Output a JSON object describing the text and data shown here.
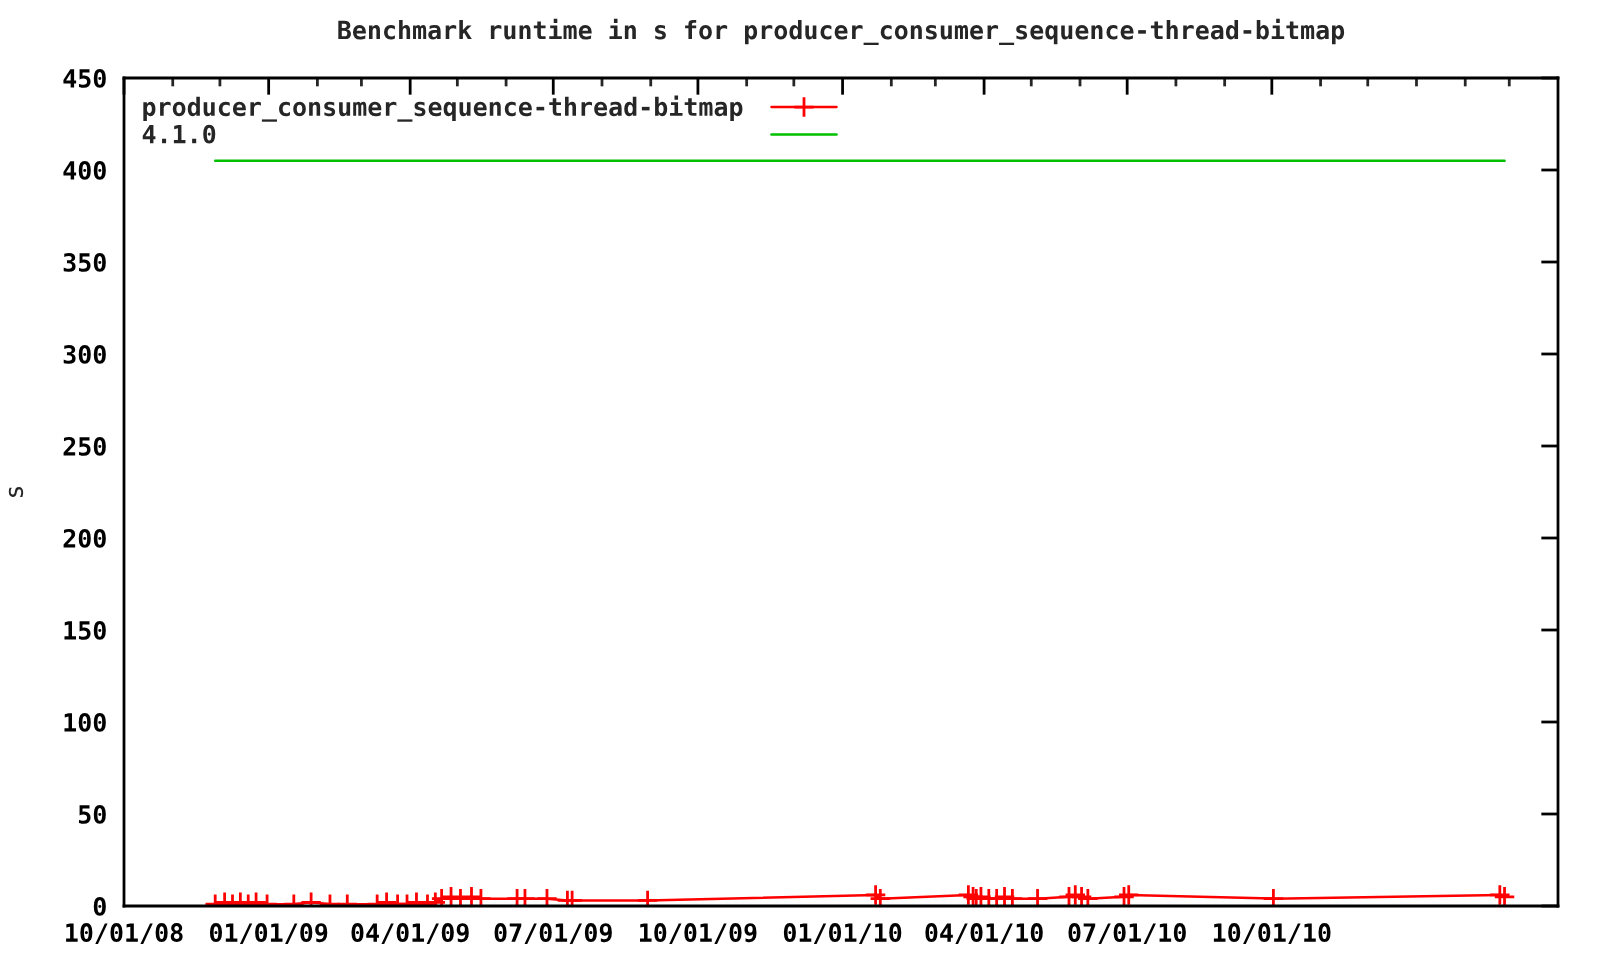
{
  "chart_data": {
    "type": "line",
    "title": "Benchmark runtime in s for producer_consumer_sequence-thread-bitmap",
    "ylabel": "s",
    "xlim": [
      "2008-10-01",
      "2011-04-01"
    ],
    "ylim": [
      0,
      450
    ],
    "yticks": [
      0,
      50,
      100,
      150,
      200,
      250,
      300,
      350,
      400,
      450
    ],
    "xticks": [
      {
        "value": "2008-10-01",
        "label": "10/01/08"
      },
      {
        "value": "2008-11-01",
        "label": null
      },
      {
        "value": "2008-12-01",
        "label": null
      },
      {
        "value": "2009-01-01",
        "label": "01/01/09"
      },
      {
        "value": "2009-02-01",
        "label": null
      },
      {
        "value": "2009-03-01",
        "label": null
      },
      {
        "value": "2009-04-01",
        "label": "04/01/09"
      },
      {
        "value": "2009-05-01",
        "label": null
      },
      {
        "value": "2009-06-01",
        "label": null
      },
      {
        "value": "2009-07-01",
        "label": "07/01/09"
      },
      {
        "value": "2009-08-01",
        "label": null
      },
      {
        "value": "2009-09-01",
        "label": null
      },
      {
        "value": "2009-10-01",
        "label": "10/01/09"
      },
      {
        "value": "2009-11-01",
        "label": null
      },
      {
        "value": "2009-12-01",
        "label": null
      },
      {
        "value": "2010-01-01",
        "label": "01/01/10"
      },
      {
        "value": "2010-02-01",
        "label": null
      },
      {
        "value": "2010-03-01",
        "label": null
      },
      {
        "value": "2010-04-01",
        "label": "04/01/10"
      },
      {
        "value": "2010-05-01",
        "label": null
      },
      {
        "value": "2010-06-01",
        "label": null
      },
      {
        "value": "2010-07-01",
        "label": "07/01/10"
      },
      {
        "value": "2010-08-01",
        "label": null
      },
      {
        "value": "2010-09-01",
        "label": null
      },
      {
        "value": "2010-10-01",
        "label": "10/01/10"
      },
      {
        "value": "2010-11-01",
        "label": null
      },
      {
        "value": "2010-12-01",
        "label": null
      },
      {
        "value": "2011-01-01",
        "label": null
      },
      {
        "value": "2011-02-01",
        "label": null
      },
      {
        "value": "2011-03-01",
        "label": null
      }
    ],
    "legend": "top left",
    "series": [
      {
        "name": "producer_consumer_sequence-thread-bitmap",
        "color": "#ff0000",
        "marker": "cross",
        "x": [
          "2008-11-28",
          "2008-12-04",
          "2008-12-09",
          "2008-12-14",
          "2008-12-19",
          "2008-12-24",
          "2008-12-31",
          "2009-01-17",
          "2009-01-28",
          "2009-02-09",
          "2009-02-20",
          "2009-03-11",
          "2009-03-17",
          "2009-03-24",
          "2009-03-30",
          "2009-04-05",
          "2009-04-12",
          "2009-04-17",
          "2009-04-21",
          "2009-04-27",
          "2009-05-03",
          "2009-05-10",
          "2009-05-16",
          "2009-06-08",
          "2009-06-13",
          "2009-06-27",
          "2009-07-10",
          "2009-07-13",
          "2009-08-30",
          "2010-01-22",
          "2010-01-25",
          "2010-03-22",
          "2010-03-25",
          "2010-03-27",
          "2010-03-30",
          "2010-04-04",
          "2010-04-09",
          "2010-04-14",
          "2010-04-19",
          "2010-05-05",
          "2010-05-25",
          "2010-05-29",
          "2010-06-02",
          "2010-06-06",
          "2010-06-29",
          "2010-07-02",
          "2010-10-02",
          "2011-02-23",
          "2011-02-26"
        ],
        "values": [
          1,
          2,
          1,
          2,
          1,
          2,
          1,
          1,
          2,
          1,
          1,
          1,
          2,
          1,
          1,
          2,
          1,
          2,
          4,
          5,
          4,
          5,
          4,
          4,
          4,
          4,
          3,
          3,
          3,
          6,
          4,
          6,
          5,
          4,
          5,
          4,
          4,
          5,
          4,
          4,
          5,
          6,
          5,
          4,
          5,
          6,
          4,
          6,
          5
        ]
      },
      {
        "name": "4.1.0",
        "color": "#00c000",
        "marker": "none",
        "x": [
          "2008-11-28",
          "2011-02-26"
        ],
        "values": [
          405,
          405
        ]
      }
    ]
  }
}
